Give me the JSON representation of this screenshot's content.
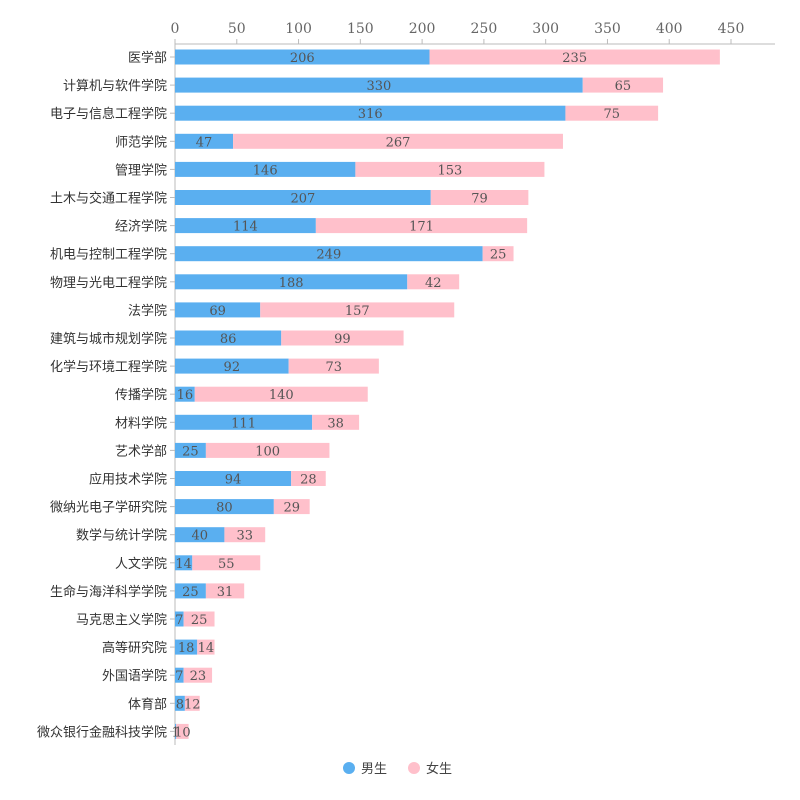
{
  "chart_data": {
    "type": "bar",
    "orientation": "horizontal",
    "stacked": true,
    "xlim": [
      0,
      450
    ],
    "x_ticks": [
      "0",
      "50",
      "100",
      "150",
      "200",
      "250",
      "300",
      "350",
      "400",
      "450"
    ],
    "x_axis_position": "top",
    "grid": false,
    "legend_position": "bottom-center",
    "categories": [
      "医学部",
      "计算机与软件学院",
      "电子与信息工程学院",
      "师范学院",
      "管理学院",
      "土木与交通工程学院",
      "经济学院",
      "机电与控制工程学院",
      "物理与光电工程学院",
      "法学院",
      "建筑与城市规划学院",
      "化学与环境工程学院",
      "传播学院",
      "材料学院",
      "艺术学部",
      "应用技术学院",
      "微纳光电子学研究院",
      "数学与统计学院",
      "人文学院",
      "生命与海洋科学学院",
      "马克思主义学院",
      "高等研究院",
      "外国语学院",
      "体育部",
      "微众银行金融科技学院"
    ],
    "series": [
      {
        "name": "男生",
        "color": "#5aaff0",
        "values": [
          206,
          330,
          316,
          47,
          146,
          207,
          114,
          249,
          188,
          69,
          86,
          92,
          16,
          111,
          25,
          94,
          80,
          40,
          14,
          25,
          7,
          18,
          7,
          8,
          1
        ]
      },
      {
        "name": "女生",
        "color": "#ffc0cb",
        "values": [
          235,
          65,
          75,
          267,
          153,
          79,
          171,
          25,
          42,
          157,
          99,
          73,
          140,
          38,
          100,
          28,
          29,
          33,
          55,
          31,
          25,
          14,
          23,
          12,
          10
        ]
      }
    ]
  }
}
